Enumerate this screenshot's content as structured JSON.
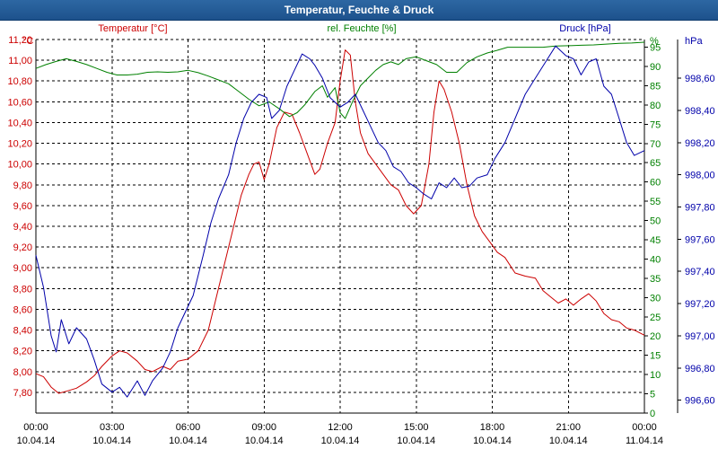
{
  "window": {
    "title": "Temperatur, Feuchte & Druck"
  },
  "colors": {
    "temp": "#cc0000",
    "hum": "#008000",
    "press": "#0000aa",
    "grid": "#000000",
    "axis": "#000000"
  },
  "chart_data": {
    "type": "line",
    "title": "Temperatur, Feuchte & Druck",
    "x_ticks": [
      {
        "time": "00:00",
        "date": "10.04.14"
      },
      {
        "time": "03:00",
        "date": "10.04.14"
      },
      {
        "time": "06:00",
        "date": "10.04.14"
      },
      {
        "time": "09:00",
        "date": "10.04.14"
      },
      {
        "time": "12:00",
        "date": "10.04.14"
      },
      {
        "time": "15:00",
        "date": "10.04.14"
      },
      {
        "time": "18:00",
        "date": "10.04.14"
      },
      {
        "time": "21:00",
        "date": "10.04.14"
      },
      {
        "time": "00:00",
        "date": "11.04.14"
      }
    ],
    "x_range_hours": [
      0,
      24
    ],
    "axes": {
      "temp": {
        "label": "Temperatur [°C]",
        "unit": "°C",
        "range": [
          7.6,
          11.2
        ],
        "ticks": [
          "7,80",
          "8,00",
          "8,20",
          "8,40",
          "8,60",
          "8,80",
          "9,00",
          "9,20",
          "9,40",
          "9,60",
          "9,80",
          "10,00",
          "10,20",
          "10,40",
          "10,60",
          "10,80",
          "11,00",
          "11,20"
        ]
      },
      "hum": {
        "label": "rel. Feuchte [%]",
        "unit": "%",
        "range": [
          0,
          97
        ],
        "ticks": [
          "0",
          "5",
          "10",
          "15",
          "20",
          "25",
          "30",
          "35",
          "40",
          "45",
          "50",
          "55",
          "60",
          "65",
          "70",
          "75",
          "80",
          "85",
          "90",
          "95"
        ]
      },
      "press": {
        "label": "Druck [hPa]",
        "unit": "hPa",
        "range": [
          996.52,
          998.84
        ],
        "ticks": [
          "996,60",
          "996,80",
          "997,00",
          "997,20",
          "997,40",
          "997,60",
          "997,80",
          "998,00",
          "998,20",
          "998,40",
          "998,60"
        ]
      }
    },
    "series": [
      {
        "name": "Temperatur",
        "axis": "temp",
        "color": "#cc0000",
        "points": [
          [
            0,
            7.98
          ],
          [
            0.3,
            7.95
          ],
          [
            0.6,
            7.85
          ],
          [
            0.9,
            7.79
          ],
          [
            1.2,
            7.81
          ],
          [
            1.6,
            7.84
          ],
          [
            2.0,
            7.9
          ],
          [
            2.3,
            7.96
          ],
          [
            2.6,
            8.05
          ],
          [
            3.0,
            8.15
          ],
          [
            3.3,
            8.2
          ],
          [
            3.6,
            8.18
          ],
          [
            4.0,
            8.1
          ],
          [
            4.3,
            8.02
          ],
          [
            4.6,
            8.0
          ],
          [
            5.0,
            8.05
          ],
          [
            5.3,
            8.02
          ],
          [
            5.6,
            8.1
          ],
          [
            6.0,
            8.12
          ],
          [
            6.4,
            8.2
          ],
          [
            6.8,
            8.4
          ],
          [
            7.2,
            8.8
          ],
          [
            7.5,
            9.1
          ],
          [
            7.8,
            9.4
          ],
          [
            8.1,
            9.7
          ],
          [
            8.4,
            9.9
          ],
          [
            8.6,
            10.0
          ],
          [
            8.8,
            10.02
          ],
          [
            9.0,
            9.85
          ],
          [
            9.2,
            10.0
          ],
          [
            9.5,
            10.35
          ],
          [
            9.8,
            10.5
          ],
          [
            10.1,
            10.48
          ],
          [
            10.4,
            10.3
          ],
          [
            10.7,
            10.1
          ],
          [
            11.0,
            9.9
          ],
          [
            11.2,
            9.95
          ],
          [
            11.5,
            10.2
          ],
          [
            11.8,
            10.4
          ],
          [
            12.0,
            10.8
          ],
          [
            12.2,
            11.1
          ],
          [
            12.4,
            11.05
          ],
          [
            12.6,
            10.6
          ],
          [
            12.8,
            10.3
          ],
          [
            13.1,
            10.1
          ],
          [
            13.4,
            10.0
          ],
          [
            13.7,
            9.9
          ],
          [
            14.0,
            9.8
          ],
          [
            14.3,
            9.75
          ],
          [
            14.6,
            9.6
          ],
          [
            14.9,
            9.52
          ],
          [
            15.2,
            9.6
          ],
          [
            15.5,
            10.0
          ],
          [
            15.7,
            10.5
          ],
          [
            15.9,
            10.8
          ],
          [
            16.1,
            10.72
          ],
          [
            16.4,
            10.5
          ],
          [
            16.7,
            10.2
          ],
          [
            17.0,
            9.8
          ],
          [
            17.3,
            9.5
          ],
          [
            17.6,
            9.35
          ],
          [
            17.9,
            9.25
          ],
          [
            18.2,
            9.15
          ],
          [
            18.5,
            9.1
          ],
          [
            18.9,
            8.95
          ],
          [
            19.3,
            8.92
          ],
          [
            19.7,
            8.9
          ],
          [
            20.0,
            8.78
          ],
          [
            20.3,
            8.72
          ],
          [
            20.6,
            8.66
          ],
          [
            20.9,
            8.7
          ],
          [
            21.2,
            8.64
          ],
          [
            21.5,
            8.7
          ],
          [
            21.8,
            8.75
          ],
          [
            22.1,
            8.68
          ],
          [
            22.4,
            8.56
          ],
          [
            22.7,
            8.5
          ],
          [
            23.0,
            8.48
          ],
          [
            23.3,
            8.42
          ],
          [
            23.6,
            8.4
          ],
          [
            24.0,
            8.35
          ]
        ]
      },
      {
        "name": "rel. Feuchte",
        "axis": "hum",
        "color": "#008000",
        "points": [
          [
            0,
            89.5
          ],
          [
            0.4,
            90.5
          ],
          [
            0.8,
            91.3
          ],
          [
            1.2,
            92
          ],
          [
            1.6,
            91.3
          ],
          [
            2.0,
            90.5
          ],
          [
            2.4,
            89.5
          ],
          [
            2.8,
            88.5
          ],
          [
            3.2,
            87.8
          ],
          [
            3.6,
            87.8
          ],
          [
            4.0,
            88.0
          ],
          [
            4.4,
            88.5
          ],
          [
            4.8,
            88.6
          ],
          [
            5.2,
            88.5
          ],
          [
            5.6,
            88.6
          ],
          [
            6.0,
            89
          ],
          [
            6.4,
            88.4
          ],
          [
            6.8,
            87.5
          ],
          [
            7.2,
            86.5
          ],
          [
            7.6,
            85.5
          ],
          [
            8.0,
            83.5
          ],
          [
            8.4,
            81.5
          ],
          [
            8.8,
            79.8
          ],
          [
            9.2,
            80.8
          ],
          [
            9.6,
            79
          ],
          [
            10.0,
            77
          ],
          [
            10.3,
            78
          ],
          [
            10.6,
            80
          ],
          [
            11.0,
            83.5
          ],
          [
            11.3,
            85
          ],
          [
            11.5,
            82
          ],
          [
            11.8,
            84.5
          ],
          [
            12.0,
            78
          ],
          [
            12.2,
            76.5
          ],
          [
            12.5,
            81
          ],
          [
            12.8,
            85
          ],
          [
            13.1,
            87
          ],
          [
            13.4,
            89
          ],
          [
            13.7,
            90.5
          ],
          [
            14.0,
            91.2
          ],
          [
            14.3,
            90.5
          ],
          [
            14.6,
            92
          ],
          [
            15.0,
            92.5
          ],
          [
            15.4,
            91.5
          ],
          [
            15.8,
            90.5
          ],
          [
            16.2,
            88.5
          ],
          [
            16.6,
            88.5
          ],
          [
            17.0,
            91.0
          ],
          [
            17.4,
            92.5
          ],
          [
            17.8,
            93.5
          ],
          [
            18.2,
            94.2
          ],
          [
            18.6,
            95.0
          ],
          [
            19.0,
            95.0
          ],
          [
            19.5,
            95.0
          ],
          [
            20.0,
            95.0
          ],
          [
            20.5,
            95.3
          ],
          [
            21.0,
            95.4
          ],
          [
            21.5,
            95.5
          ],
          [
            22.0,
            95.6
          ],
          [
            22.5,
            95.8
          ],
          [
            23.0,
            96.0
          ],
          [
            23.5,
            96.1
          ],
          [
            24.0,
            96.3
          ]
        ]
      },
      {
        "name": "Druck",
        "axis": "press",
        "color": "#0000aa",
        "points": [
          [
            0,
            997.5
          ],
          [
            0.3,
            997.3
          ],
          [
            0.6,
            997.0
          ],
          [
            0.8,
            996.9
          ],
          [
            1.0,
            997.1
          ],
          [
            1.3,
            996.95
          ],
          [
            1.6,
            997.05
          ],
          [
            2.0,
            996.98
          ],
          [
            2.3,
            996.85
          ],
          [
            2.6,
            996.7
          ],
          [
            3.0,
            996.65
          ],
          [
            3.3,
            996.68
          ],
          [
            3.6,
            996.62
          ],
          [
            4.0,
            996.72
          ],
          [
            4.3,
            996.63
          ],
          [
            4.6,
            996.72
          ],
          [
            5.0,
            996.8
          ],
          [
            5.3,
            996.9
          ],
          [
            5.6,
            997.05
          ],
          [
            5.9,
            997.15
          ],
          [
            6.2,
            997.25
          ],
          [
            6.6,
            997.5
          ],
          [
            6.9,
            997.7
          ],
          [
            7.2,
            997.85
          ],
          [
            7.6,
            998.0
          ],
          [
            7.9,
            998.2
          ],
          [
            8.2,
            998.35
          ],
          [
            8.5,
            998.45
          ],
          [
            8.8,
            998.5
          ],
          [
            9.1,
            998.48
          ],
          [
            9.3,
            998.35
          ],
          [
            9.6,
            998.4
          ],
          [
            9.9,
            998.55
          ],
          [
            10.2,
            998.65
          ],
          [
            10.5,
            998.75
          ],
          [
            10.8,
            998.72
          ],
          [
            11.0,
            998.68
          ],
          [
            11.3,
            998.6
          ],
          [
            11.6,
            998.48
          ],
          [
            12.0,
            998.42
          ],
          [
            12.3,
            998.45
          ],
          [
            12.6,
            998.5
          ],
          [
            12.9,
            998.4
          ],
          [
            13.2,
            998.3
          ],
          [
            13.5,
            998.2
          ],
          [
            13.8,
            998.15
          ],
          [
            14.1,
            998.05
          ],
          [
            14.4,
            998.02
          ],
          [
            14.7,
            997.95
          ],
          [
            15.0,
            997.92
          ],
          [
            15.3,
            997.88
          ],
          [
            15.6,
            997.85
          ],
          [
            15.9,
            997.95
          ],
          [
            16.2,
            997.92
          ],
          [
            16.5,
            997.98
          ],
          [
            16.8,
            997.92
          ],
          [
            17.1,
            997.93
          ],
          [
            17.4,
            997.98
          ],
          [
            17.8,
            998.0
          ],
          [
            18.1,
            998.1
          ],
          [
            18.5,
            998.2
          ],
          [
            18.9,
            998.35
          ],
          [
            19.3,
            998.5
          ],
          [
            19.7,
            998.6
          ],
          [
            20.1,
            998.7
          ],
          [
            20.5,
            998.8
          ],
          [
            20.9,
            998.74
          ],
          [
            21.2,
            998.72
          ],
          [
            21.5,
            998.62
          ],
          [
            21.8,
            998.7
          ],
          [
            22.1,
            998.72
          ],
          [
            22.4,
            998.55
          ],
          [
            22.7,
            998.5
          ],
          [
            23.0,
            998.35
          ],
          [
            23.3,
            998.2
          ],
          [
            23.6,
            998.12
          ],
          [
            24.0,
            998.15
          ]
        ]
      }
    ]
  }
}
